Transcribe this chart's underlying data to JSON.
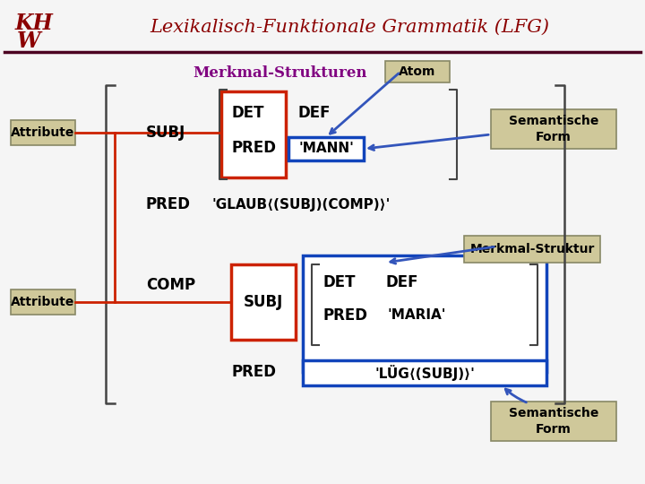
{
  "bg_color": "#f5f5f5",
  "title_text": "Lexikalisch-Funktionale Grammatik (LFG)",
  "title_color": "#8B0000",
  "logo_color": "#8B0000",
  "header_line_color": "#4B0020",
  "merkmal_strukturen_text": "Merkmal-Strukturen",
  "merkmal_strukturen_color": "#800080",
  "atom_text": "Atom",
  "label_bg": "#cfc89a",
  "label_edge": "#888866",
  "blue_color": "#1144bb",
  "red_color": "#cc2200",
  "black_color": "#000000",
  "white_bg": "#ffffff",
  "bracket_color": "#444444",
  "annot_line_color": "#3355bb"
}
